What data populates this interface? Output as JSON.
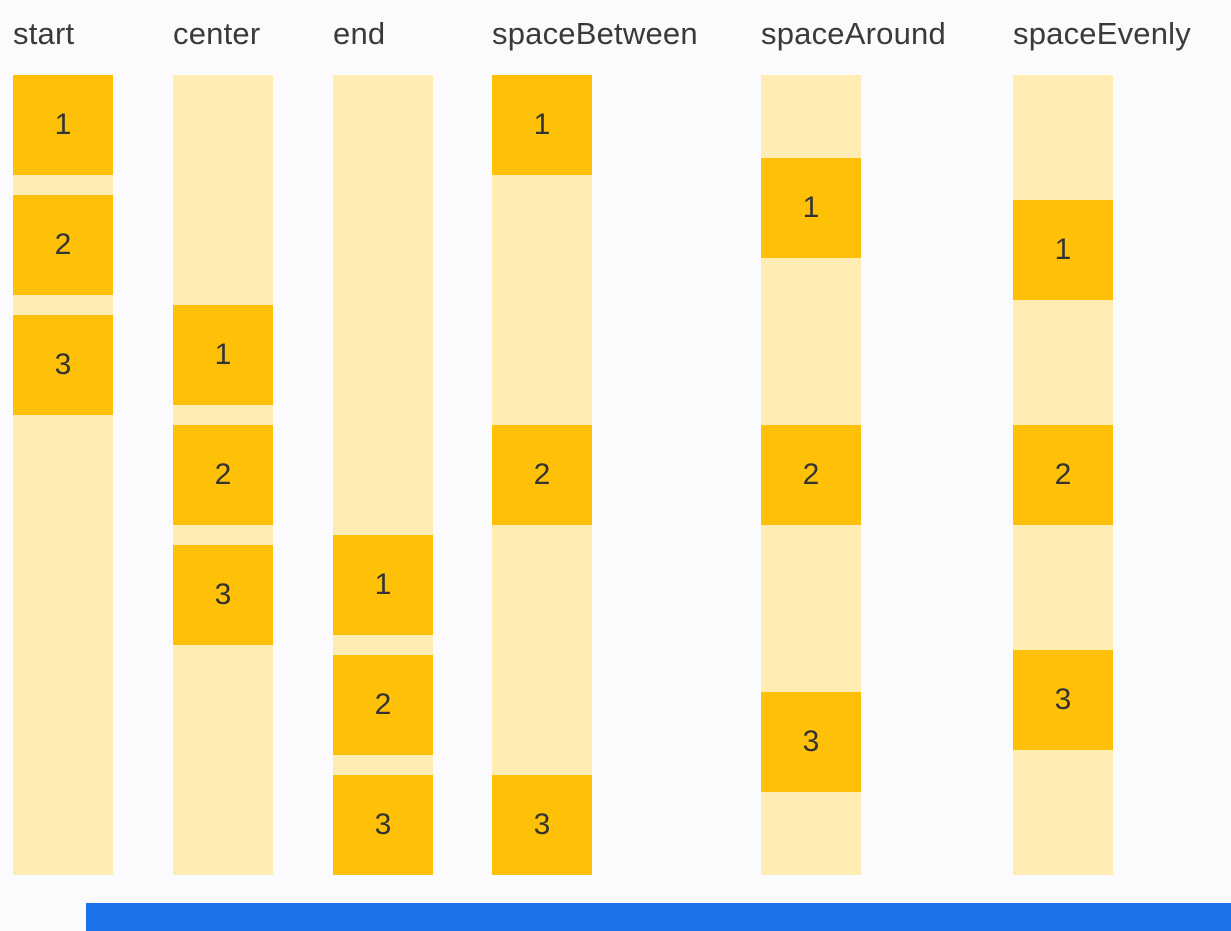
{
  "figure": {
    "subject": "MainAxisAlignment column demos"
  },
  "colors": {
    "item_amber": "#FFC107",
    "track_cream": "#FFECB3",
    "label_text": "#3A3A3A",
    "item_number_text": "#333333",
    "background": "#FBFBFE",
    "bottom_bar_blue": "#1A73E8"
  },
  "columns": [
    {
      "label": "start",
      "alignment": "start",
      "items": [
        "1",
        "2",
        "3"
      ]
    },
    {
      "label": "center",
      "alignment": "center",
      "items": [
        "1",
        "2",
        "3"
      ]
    },
    {
      "label": "end",
      "alignment": "end",
      "items": [
        "1",
        "2",
        "3"
      ]
    },
    {
      "label": "spaceBetween",
      "alignment": "spaceBetween",
      "items": [
        "1",
        "2",
        "3"
      ]
    },
    {
      "label": "spaceAround",
      "alignment": "spaceAround",
      "items": [
        "1",
        "2",
        "3"
      ]
    },
    {
      "label": "spaceEvenly",
      "alignment": "spaceEvenly",
      "items": [
        "1",
        "2",
        "3"
      ]
    }
  ]
}
